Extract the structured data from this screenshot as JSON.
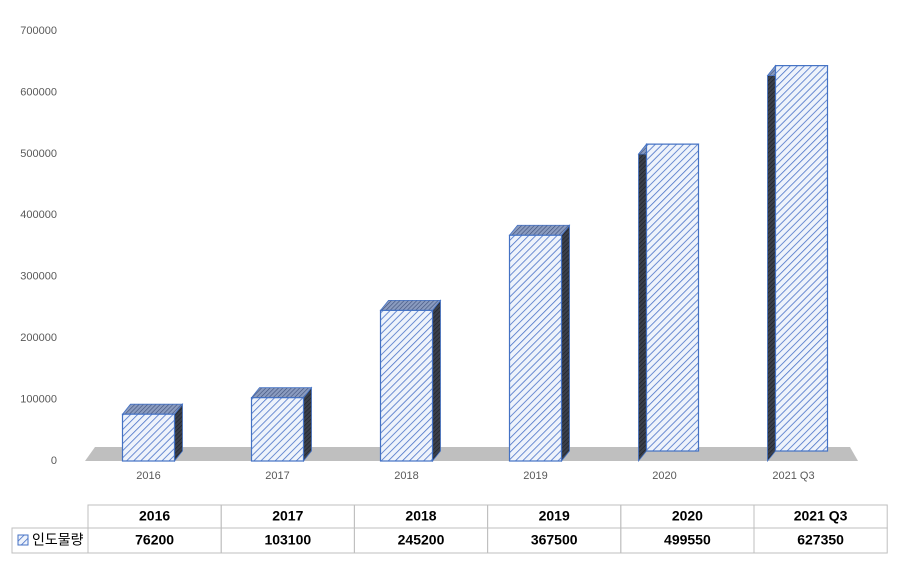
{
  "chart_data": {
    "type": "bar3d",
    "categories": [
      "2016",
      "2017",
      "2018",
      "2019",
      "2020",
      "2021 Q3"
    ],
    "series": [
      {
        "name": "인도물량",
        "color": "#4472c4",
        "values": [
          76200,
          103100,
          245200,
          367500,
          499550,
          627350
        ]
      }
    ],
    "ylim": [
      0,
      700000
    ],
    "yticks": [
      0,
      100000,
      200000,
      300000,
      400000,
      500000,
      600000,
      700000
    ],
    "grid": false,
    "data_table": true
  }
}
